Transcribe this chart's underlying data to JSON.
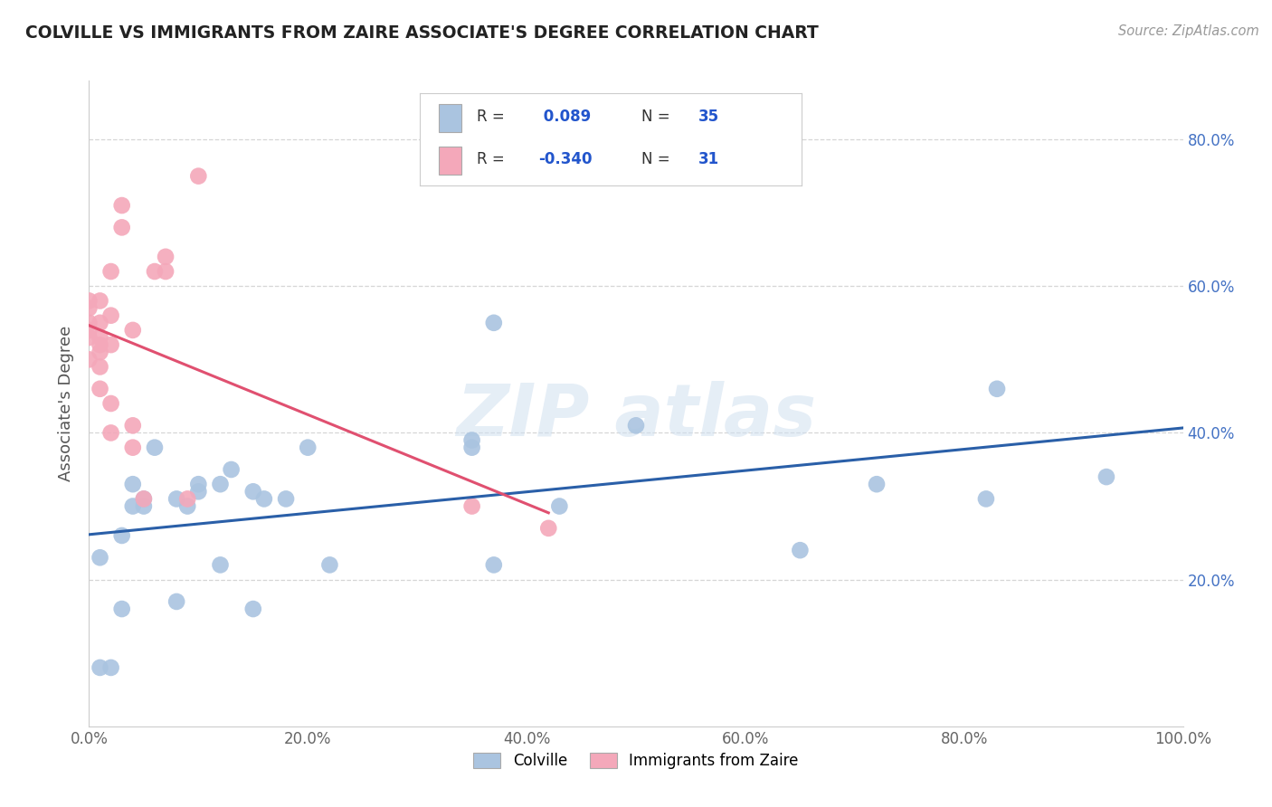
{
  "title": "COLVILLE VS IMMIGRANTS FROM ZAIRE ASSOCIATE'S DEGREE CORRELATION CHART",
  "source_text": "Source: ZipAtlas.com",
  "ylabel": "Associate's Degree",
  "xlim": [
    0.0,
    1.0
  ],
  "ylim": [
    0.0,
    0.88
  ],
  "xtick_labels": [
    "0.0%",
    "20.0%",
    "40.0%",
    "60.0%",
    "80.0%",
    "100.0%"
  ],
  "xtick_vals": [
    0.0,
    0.2,
    0.4,
    0.6,
    0.8,
    1.0
  ],
  "ytick_labels": [
    "20.0%",
    "40.0%",
    "60.0%",
    "80.0%"
  ],
  "ytick_vals": [
    0.2,
    0.4,
    0.6,
    0.8
  ],
  "legend_labels": [
    "Colville",
    "Immigrants from Zaire"
  ],
  "colville_color": "#aac4e0",
  "zaire_color": "#f4a8ba",
  "colville_line_color": "#2a5fa8",
  "zaire_line_color": "#e05070",
  "colville_r": 0.089,
  "colville_n": 35,
  "zaire_r": -0.34,
  "zaire_n": 31,
  "legend_r_color": "#2255cc",
  "tick_color": "#4472c4",
  "background_color": "#ffffff",
  "colville_points_x": [
    0.01,
    0.01,
    0.02,
    0.03,
    0.03,
    0.04,
    0.04,
    0.05,
    0.05,
    0.06,
    0.08,
    0.08,
    0.09,
    0.1,
    0.1,
    0.12,
    0.12,
    0.13,
    0.15,
    0.15,
    0.16,
    0.18,
    0.2,
    0.22,
    0.35,
    0.35,
    0.37,
    0.37,
    0.43,
    0.5,
    0.65,
    0.72,
    0.82,
    0.83,
    0.93
  ],
  "colville_points_y": [
    0.08,
    0.23,
    0.08,
    0.16,
    0.26,
    0.3,
    0.33,
    0.3,
    0.31,
    0.38,
    0.17,
    0.31,
    0.3,
    0.32,
    0.33,
    0.22,
    0.33,
    0.35,
    0.16,
    0.32,
    0.31,
    0.31,
    0.38,
    0.22,
    0.38,
    0.39,
    0.22,
    0.55,
    0.3,
    0.41,
    0.24,
    0.33,
    0.31,
    0.46,
    0.34
  ],
  "zaire_points_x": [
    0.0,
    0.0,
    0.0,
    0.0,
    0.0,
    0.0,
    0.01,
    0.01,
    0.01,
    0.01,
    0.01,
    0.01,
    0.01,
    0.02,
    0.02,
    0.02,
    0.02,
    0.02,
    0.03,
    0.03,
    0.04,
    0.04,
    0.04,
    0.05,
    0.06,
    0.07,
    0.07,
    0.09,
    0.1,
    0.35,
    0.42
  ],
  "zaire_points_y": [
    0.5,
    0.53,
    0.54,
    0.55,
    0.57,
    0.58,
    0.46,
    0.49,
    0.51,
    0.52,
    0.53,
    0.55,
    0.58,
    0.4,
    0.44,
    0.52,
    0.56,
    0.62,
    0.68,
    0.71,
    0.54,
    0.38,
    0.41,
    0.31,
    0.62,
    0.62,
    0.64,
    0.31,
    0.75,
    0.3,
    0.27
  ]
}
